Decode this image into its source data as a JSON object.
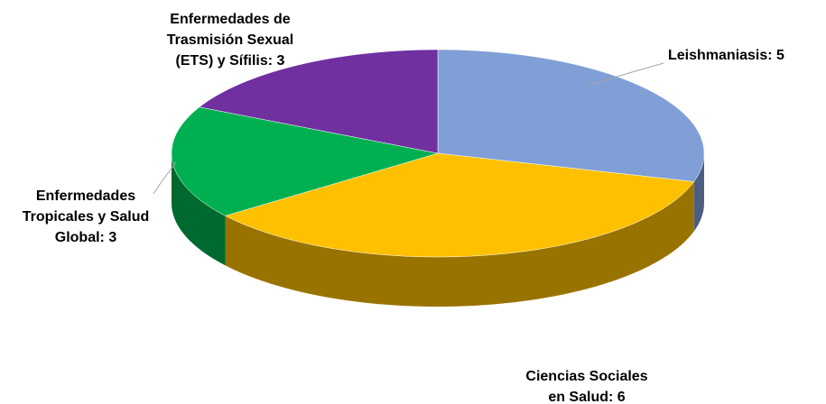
{
  "chart_data": {
    "type": "pie",
    "categories": [
      "Leishmaniasis",
      "Ciencias Sociales en Salud",
      "Enfermedades Tropicales y Salud Global",
      "Enfermedades de Trasmisión Sexual (ETS) y Sífilis"
    ],
    "values": [
      5,
      6,
      3,
      3
    ],
    "value_labels": [
      [
        "Leishmaniasis: 5"
      ],
      [
        "Ciencias Sociales",
        "en Salud: 6"
      ],
      [
        "Enfermedades",
        "Tropicales y Salud",
        "Global: 3"
      ],
      [
        "Enfermedades de",
        "Trasmisión Sexual",
        "(ETS) y Sífilis: 3"
      ]
    ],
    "colors": [
      "#7f9fd6",
      "#ffc000",
      "#00b050",
      "#7030a0"
    ]
  }
}
